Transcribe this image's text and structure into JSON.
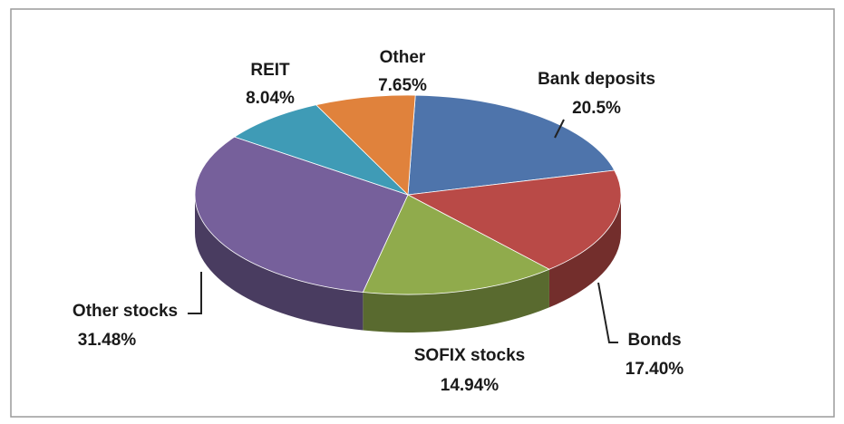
{
  "chart_data": {
    "type": "pie3d",
    "categories": [
      "Bank deposits",
      "Bonds",
      "SOFIX stocks",
      "Other stocks",
      "REIT",
      "Other"
    ],
    "values": [
      20.5,
      17.4,
      14.94,
      31.48,
      8.04,
      7.65
    ],
    "value_labels": [
      "20.5%",
      "17.40%",
      "14.94%",
      "31.48%",
      "8.04%",
      "7.65%"
    ],
    "colors": [
      "#4e74ab",
      "#b94a47",
      "#90ab4c",
      "#76609b",
      "#3f9bb6",
      "#e0823c"
    ]
  }
}
